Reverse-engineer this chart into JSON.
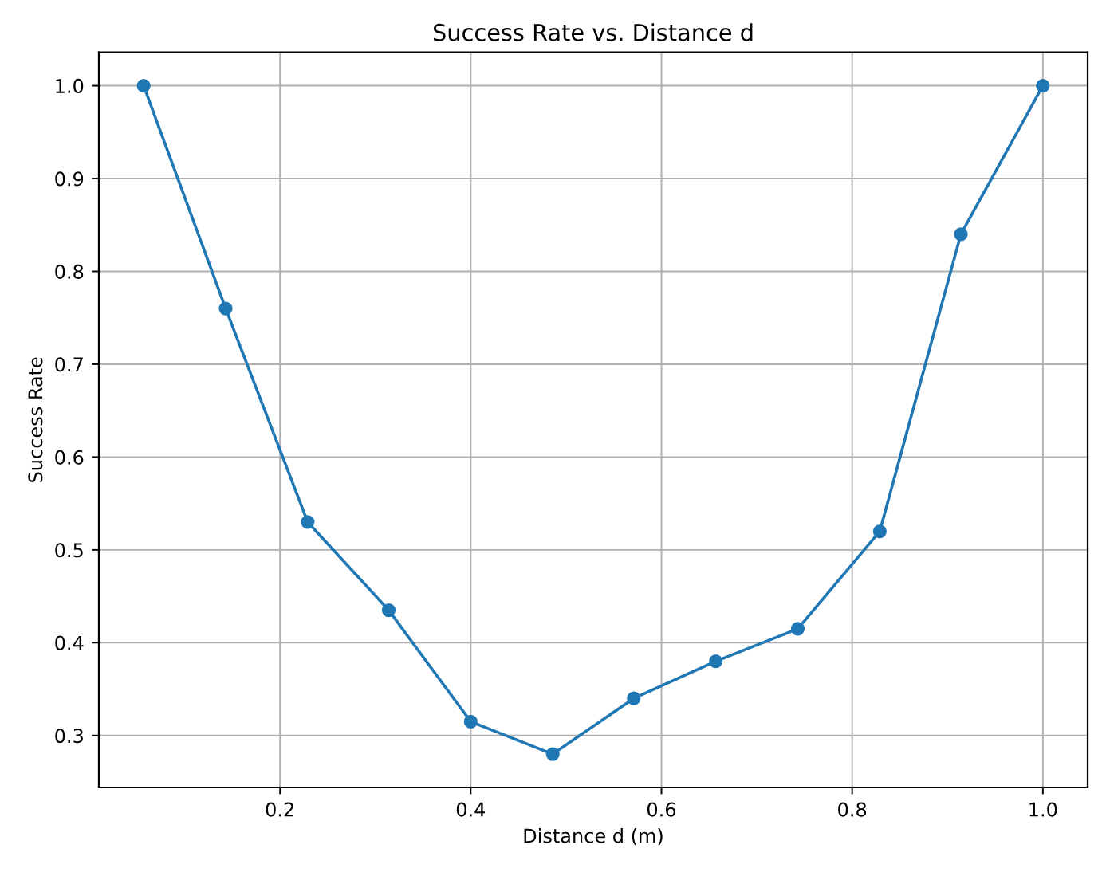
{
  "chart_data": {
    "type": "line",
    "title": "Success Rate vs. Distance d",
    "xlabel": "Distance d (m)",
    "ylabel": "Success Rate",
    "x": [
      0.057,
      0.143,
      0.229,
      0.314,
      0.4,
      0.486,
      0.571,
      0.657,
      0.743,
      0.829,
      0.914,
      1.0
    ],
    "series": [
      {
        "color": "#1f77b4",
        "values": [
          1.0,
          0.76,
          0.53,
          0.435,
          0.315,
          0.28,
          0.34,
          0.38,
          0.415,
          0.52,
          0.84,
          1.0
        ]
      }
    ],
    "xlim": [
      0.01,
      1.047
    ],
    "ylim": [
      0.244,
      1.036
    ],
    "xticks": [
      0.2,
      0.4,
      0.6,
      0.8,
      {
        "value": 1.0,
        "label": "1.0"
      }
    ],
    "yticks": [
      0.3,
      0.4,
      0.5,
      0.6,
      0.7,
      0.8,
      0.9,
      {
        "value": 1.0,
        "label": "1.0"
      }
    ],
    "grid": true,
    "marker": "circle",
    "line_style": "solid"
  }
}
